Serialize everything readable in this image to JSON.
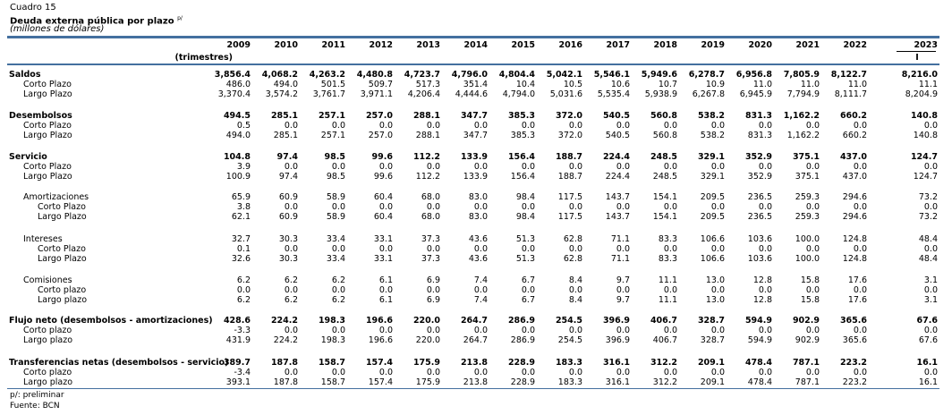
{
  "header": {
    "cuadro": "Cuadro 15",
    "title": "Deuda externa pública por plazo",
    "title_sup": "p/",
    "units": "(millones de dólares)"
  },
  "table": {
    "years": [
      "2009",
      "2010",
      "2011",
      "2012",
      "2013",
      "2014",
      "2015",
      "2016",
      "2017",
      "2018",
      "2019",
      "2020",
      "2021",
      "2022",
      "2023"
    ],
    "subheader_label": "(trimestres)",
    "subheader_value": "I",
    "rows": [
      {
        "label": "Saldos",
        "bold": true,
        "indent": 0,
        "values": [
          "3,856.4",
          "4,068.2",
          "4,263.2",
          "4,480.8",
          "4,723.7",
          "4,796.0",
          "4,804.4",
          "5,042.1",
          "5,546.1",
          "5,949.6",
          "6,278.7",
          "6,956.8",
          "7,805.9",
          "8,122.7",
          "8,216.0"
        ]
      },
      {
        "label": "Corto Plazo",
        "bold": false,
        "indent": 1,
        "values": [
          "486.0",
          "494.0",
          "501.5",
          "509.7",
          "517.3",
          "351.4",
          "10.4",
          "10.5",
          "10.6",
          "10.7",
          "10.9",
          "11.0",
          "11.0",
          "11.0",
          "11.1"
        ]
      },
      {
        "label": "Largo Plazo",
        "bold": false,
        "indent": 1,
        "values": [
          "3,370.4",
          "3,574.2",
          "3,761.7",
          "3,971.1",
          "4,206.4",
          "4,444.6",
          "4,794.0",
          "5,031.6",
          "5,535.4",
          "5,938.9",
          "6,267.8",
          "6,945.9",
          "7,794.9",
          "8,111.7",
          "8,204.9"
        ]
      },
      {
        "label": "Desembolsos",
        "bold": true,
        "indent": 0,
        "values": [
          "494.5",
          "285.1",
          "257.1",
          "257.0",
          "288.1",
          "347.7",
          "385.3",
          "372.0",
          "540.5",
          "560.8",
          "538.2",
          "831.3",
          "1,162.2",
          "660.2",
          "140.8"
        ]
      },
      {
        "label": "Corto Plazo",
        "bold": false,
        "indent": 1,
        "values": [
          "0.5",
          "0.0",
          "0.0",
          "0.0",
          "0.0",
          "0.0",
          "0.0",
          "0.0",
          "0.0",
          "0.0",
          "0.0",
          "0.0",
          "0.0",
          "0.0",
          "0.0"
        ]
      },
      {
        "label": "Largo Plazo",
        "bold": false,
        "indent": 1,
        "values": [
          "494.0",
          "285.1",
          "257.1",
          "257.0",
          "288.1",
          "347.7",
          "385.3",
          "372.0",
          "540.5",
          "560.8",
          "538.2",
          "831.3",
          "1,162.2",
          "660.2",
          "140.8"
        ]
      },
      {
        "label": "Servicio",
        "bold": true,
        "indent": 0,
        "values": [
          "104.8",
          "97.4",
          "98.5",
          "99.6",
          "112.2",
          "133.9",
          "156.4",
          "188.7",
          "224.4",
          "248.5",
          "329.1",
          "352.9",
          "375.1",
          "437.0",
          "124.7"
        ]
      },
      {
        "label": "Corto Plazo",
        "bold": false,
        "indent": 1,
        "values": [
          "3.9",
          "0.0",
          "0.0",
          "0.0",
          "0.0",
          "0.0",
          "0.0",
          "0.0",
          "0.0",
          "0.0",
          "0.0",
          "0.0",
          "0.0",
          "0.0",
          "0.0"
        ]
      },
      {
        "label": "Largo Plazo",
        "bold": false,
        "indent": 1,
        "values": [
          "100.9",
          "97.4",
          "98.5",
          "99.6",
          "112.2",
          "133.9",
          "156.4",
          "188.7",
          "224.4",
          "248.5",
          "329.1",
          "352.9",
          "375.1",
          "437.0",
          "124.7"
        ]
      },
      {
        "label": "Amortizaciones",
        "bold": false,
        "indent": 1,
        "values": [
          "65.9",
          "60.9",
          "58.9",
          "60.4",
          "68.0",
          "83.0",
          "98.4",
          "117.5",
          "143.7",
          "154.1",
          "209.5",
          "236.5",
          "259.3",
          "294.6",
          "73.2"
        ]
      },
      {
        "label": "Corto Plazo",
        "bold": false,
        "indent": 2,
        "values": [
          "3.8",
          "0.0",
          "0.0",
          "0.0",
          "0.0",
          "0.0",
          "0.0",
          "0.0",
          "0.0",
          "0.0",
          "0.0",
          "0.0",
          "0.0",
          "0.0",
          "0.0"
        ]
      },
      {
        "label": "Largo Plazo",
        "bold": false,
        "indent": 2,
        "values": [
          "62.1",
          "60.9",
          "58.9",
          "60.4",
          "68.0",
          "83.0",
          "98.4",
          "117.5",
          "143.7",
          "154.1",
          "209.5",
          "236.5",
          "259.3",
          "294.6",
          "73.2"
        ]
      },
      {
        "label": "Intereses",
        "bold": false,
        "indent": 1,
        "values": [
          "32.7",
          "30.3",
          "33.4",
          "33.1",
          "37.3",
          "43.6",
          "51.3",
          "62.8",
          "71.1",
          "83.3",
          "106.6",
          "103.6",
          "100.0",
          "124.8",
          "48.4"
        ]
      },
      {
        "label": "Corto Plazo",
        "bold": false,
        "indent": 2,
        "values": [
          "0.1",
          "0.0",
          "0.0",
          "0.0",
          "0.0",
          "0.0",
          "0.0",
          "0.0",
          "0.0",
          "0.0",
          "0.0",
          "0.0",
          "0.0",
          "0.0",
          "0.0"
        ]
      },
      {
        "label": "Largo Plazo",
        "bold": false,
        "indent": 2,
        "values": [
          "32.6",
          "30.3",
          "33.4",
          "33.1",
          "37.3",
          "43.6",
          "51.3",
          "62.8",
          "71.1",
          "83.3",
          "106.6",
          "103.6",
          "100.0",
          "124.8",
          "48.4"
        ]
      },
      {
        "label": "Comisiones",
        "bold": false,
        "indent": 1,
        "values": [
          "6.2",
          "6.2",
          "6.2",
          "6.1",
          "6.9",
          "7.4",
          "6.7",
          "8.4",
          "9.7",
          "11.1",
          "13.0",
          "12.8",
          "15.8",
          "17.6",
          "3.1"
        ]
      },
      {
        "label": "Corto plazo",
        "bold": false,
        "indent": 2,
        "values": [
          "0.0",
          "0.0",
          "0.0",
          "0.0",
          "0.0",
          "0.0",
          "0.0",
          "0.0",
          "0.0",
          "0.0",
          "0.0",
          "0.0",
          "0.0",
          "0.0",
          "0.0"
        ]
      },
      {
        "label": "Largo plazo",
        "bold": false,
        "indent": 2,
        "values": [
          "6.2",
          "6.2",
          "6.2",
          "6.1",
          "6.9",
          "7.4",
          "6.7",
          "8.4",
          "9.7",
          "11.1",
          "13.0",
          "12.8",
          "15.8",
          "17.6",
          "3.1"
        ]
      },
      {
        "label": "Flujo neto (desembolsos - amortizaciones)",
        "bold": true,
        "indent": 0,
        "values": [
          "428.6",
          "224.2",
          "198.3",
          "196.6",
          "220.0",
          "264.7",
          "286.9",
          "254.5",
          "396.9",
          "406.7",
          "328.7",
          "594.9",
          "902.9",
          "365.6",
          "67.6"
        ]
      },
      {
        "label": "Corto plazo",
        "bold": false,
        "indent": 1,
        "values": [
          "-3.3",
          "0.0",
          "0.0",
          "0.0",
          "0.0",
          "0.0",
          "0.0",
          "0.0",
          "0.0",
          "0.0",
          "0.0",
          "0.0",
          "0.0",
          "0.0",
          "0.0"
        ]
      },
      {
        "label": "Largo plazo",
        "bold": false,
        "indent": 1,
        "values": [
          "431.9",
          "224.2",
          "198.3",
          "196.6",
          "220.0",
          "264.7",
          "286.9",
          "254.5",
          "396.9",
          "406.7",
          "328.7",
          "594.9",
          "902.9",
          "365.6",
          "67.6"
        ]
      },
      {
        "label": "Transferencias netas (desembolsos - servicio)",
        "bold": true,
        "indent": 0,
        "values": [
          "389.7",
          "187.8",
          "158.7",
          "157.4",
          "175.9",
          "213.8",
          "228.9",
          "183.3",
          "316.1",
          "312.2",
          "209.1",
          "478.4",
          "787.1",
          "223.2",
          "16.1"
        ]
      },
      {
        "label": "Corto plazo",
        "bold": false,
        "indent": 1,
        "values": [
          "-3.4",
          "0.0",
          "0.0",
          "0.0",
          "0.0",
          "0.0",
          "0.0",
          "0.0",
          "0.0",
          "0.0",
          "0.0",
          "0.0",
          "0.0",
          "0.0",
          "0.0"
        ]
      },
      {
        "label": "Largo plazo",
        "bold": false,
        "indent": 1,
        "values": [
          "393.1",
          "187.8",
          "158.7",
          "157.4",
          "175.9",
          "213.8",
          "228.9",
          "183.3",
          "316.1",
          "312.2",
          "209.1",
          "478.4",
          "787.1",
          "223.2",
          "16.1"
        ]
      }
    ]
  },
  "footer": {
    "note": "p/: preliminar",
    "source": "Fuente: BCN"
  }
}
